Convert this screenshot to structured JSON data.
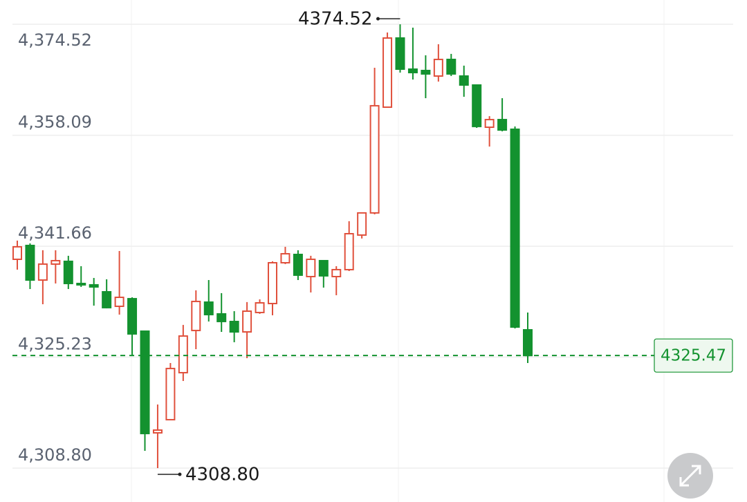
{
  "chart_data": {
    "type": "candlestick",
    "ylim": [
      4303.78,
      4378.12
    ],
    "yticks": [
      {
        "value": 4374.52,
        "label": "4,374.52"
      },
      {
        "value": 4358.09,
        "label": "4,358.09"
      },
      {
        "value": 4341.66,
        "label": "4,341.66"
      },
      {
        "value": 4325.23,
        "label": "4,325.23"
      },
      {
        "value": 4308.8,
        "label": "4,308.80"
      }
    ],
    "grid": true,
    "up_color": "#e0503c",
    "down_color": "#13922f",
    "open": [
      4339.72,
      4341.77,
      4336.65,
      4339.01,
      4339.42,
      4336.14,
      4335.94,
      4334.91,
      4332.76,
      4333.89,
      4329.08,
      4314.02,
      4315.97,
      4322.93,
      4329.18,
      4333.38,
      4331.64,
      4330.51,
      4328.97,
      4331.84,
      4333.17,
      4339.21,
      4340.44,
      4337.16,
      4339.52,
      4337.16,
      4338.19,
      4343.31,
      4346.59,
      4362.25,
      4372.49,
      4367.88,
      4367.68,
      4366.86,
      4369.32,
      4366.86,
      4365.53,
      4359.28,
      4360.41,
      4358.98,
      4329.28
    ],
    "high": [
      4342.49,
      4342.08,
      4341.06,
      4341.06,
      4340.24,
      4338.7,
      4336.96,
      4336.76,
      4340.95,
      4334.09,
      4329.08,
      4318.22,
      4324.36,
      4330.0,
      4335.12,
      4336.65,
      4334.71,
      4332.04,
      4333.38,
      4333.79,
      4339.42,
      4341.57,
      4341.06,
      4340.24,
      4339.52,
      4338.7,
      4345.36,
      4346.59,
      4368.09,
      4373.31,
      4374.52,
      4374.03,
      4369.93,
      4371.57,
      4370.14,
      4368.4,
      4365.53,
      4360.92,
      4363.58,
      4359.39,
      4331.84
    ],
    "low": [
      4338.19,
      4335.32,
      4333.07,
      4336.14,
      4335.32,
      4335.63,
      4332.86,
      4332.45,
      4331.53,
      4325.39,
      4311.36,
      4308.8,
      4315.97,
      4321.7,
      4326.41,
      4330.51,
      4328.97,
      4327.44,
      4325.08,
      4331.64,
      4331.43,
      4339.01,
      4336.65,
      4334.81,
      4335.53,
      4334.4,
      4337.98,
      4342.8,
      4346.38,
      4362.25,
      4367.37,
      4366.35,
      4363.58,
      4366.04,
      4366.86,
      4363.79,
      4359.18,
      4356.42,
      4358.67,
      4329.48,
      4324.36
    ],
    "close": [
      4341.57,
      4336.65,
      4339.01,
      4339.52,
      4336.14,
      4335.94,
      4335.63,
      4332.56,
      4334.09,
      4328.67,
      4313.92,
      4314.43,
      4323.55,
      4328.36,
      4333.48,
      4331.53,
      4330.51,
      4328.97,
      4332.04,
      4333.27,
      4339.21,
      4340.54,
      4337.37,
      4339.72,
      4337.27,
      4338.19,
      4343.51,
      4346.59,
      4362.46,
      4372.49,
      4367.88,
      4367.37,
      4367.17,
      4369.32,
      4367.17,
      4365.53,
      4359.39,
      4360.41,
      4358.87,
      4329.69,
      4325.47
    ],
    "high_annotation": {
      "value": 4374.52,
      "label": "4374.52"
    },
    "low_annotation": {
      "value": 4308.8,
      "label": "4308.80"
    },
    "last_price": {
      "value": 4325.47,
      "label": "4325.47"
    }
  }
}
